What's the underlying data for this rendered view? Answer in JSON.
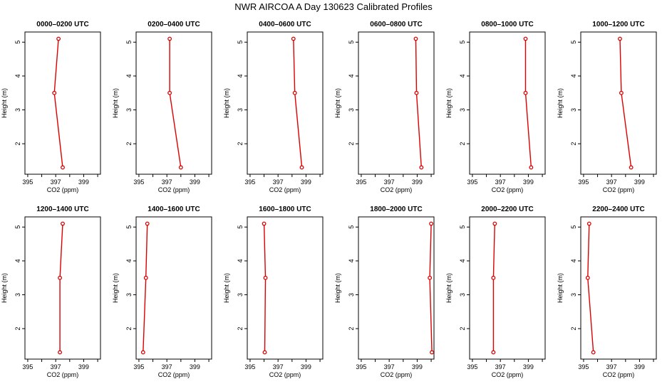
{
  "title": "NWR AIRCOA A  Day 130623  Calibrated Profiles",
  "chart_data": {
    "type": "line",
    "layout": "small-multiples 2x6",
    "xlabel": "CO2 (ppm)",
    "ylabel": "Height (m)",
    "xlim": [
      394.8,
      400.2
    ],
    "ylim": [
      1.1,
      5.3
    ],
    "xticks": [
      395,
      396,
      397,
      398,
      399,
      400
    ],
    "xtick_labels": [
      "395",
      "",
      "397",
      "",
      "399",
      ""
    ],
    "yticks": [
      2,
      3,
      4,
      5
    ],
    "ytick_labels": [
      "2",
      "3",
      "4",
      "5"
    ],
    "grid": false,
    "line_color": "#dd0000",
    "marker": "open-circle",
    "panels": [
      {
        "label": "0000–0200 UTC",
        "points": [
          {
            "x": 397.2,
            "y": 5.1
          },
          {
            "x": 396.9,
            "y": 3.5
          },
          {
            "x": 397.5,
            "y": 1.3
          }
        ]
      },
      {
        "label": "0200–0400 UTC",
        "points": [
          {
            "x": 397.2,
            "y": 5.1
          },
          {
            "x": 397.2,
            "y": 3.5
          },
          {
            "x": 398.0,
            "y": 1.3
          }
        ]
      },
      {
        "label": "0400–0600 UTC",
        "points": [
          {
            "x": 398.1,
            "y": 5.1
          },
          {
            "x": 398.2,
            "y": 3.5
          },
          {
            "x": 398.7,
            "y": 1.3
          }
        ]
      },
      {
        "label": "0600–0800 UTC",
        "points": [
          {
            "x": 398.9,
            "y": 5.1
          },
          {
            "x": 398.95,
            "y": 3.5
          },
          {
            "x": 399.3,
            "y": 1.3
          }
        ]
      },
      {
        "label": "0800–1000 UTC",
        "points": [
          {
            "x": 398.8,
            "y": 5.1
          },
          {
            "x": 398.8,
            "y": 3.5
          },
          {
            "x": 399.2,
            "y": 1.3
          }
        ]
      },
      {
        "label": "1000–1200 UTC",
        "points": [
          {
            "x": 397.6,
            "y": 5.1
          },
          {
            "x": 397.7,
            "y": 3.5
          },
          {
            "x": 398.4,
            "y": 1.3
          }
        ]
      },
      {
        "label": "1200–1400 UTC",
        "points": [
          {
            "x": 397.5,
            "y": 5.1
          },
          {
            "x": 397.3,
            "y": 3.5
          },
          {
            "x": 397.3,
            "y": 1.3
          }
        ]
      },
      {
        "label": "1400–1600 UTC",
        "points": [
          {
            "x": 395.6,
            "y": 5.1
          },
          {
            "x": 395.5,
            "y": 3.5
          },
          {
            "x": 395.3,
            "y": 1.3
          }
        ]
      },
      {
        "label": "1600–1800 UTC",
        "points": [
          {
            "x": 396.0,
            "y": 5.1
          },
          {
            "x": 396.1,
            "y": 3.5
          },
          {
            "x": 396.05,
            "y": 1.3
          }
        ]
      },
      {
        "label": "1800–2000 UTC",
        "points": [
          {
            "x": 400.0,
            "y": 5.1
          },
          {
            "x": 399.9,
            "y": 3.5
          },
          {
            "x": 400.05,
            "y": 1.3
          }
        ]
      },
      {
        "label": "2000–2200 UTC",
        "points": [
          {
            "x": 396.6,
            "y": 5.1
          },
          {
            "x": 396.5,
            "y": 3.5
          },
          {
            "x": 396.5,
            "y": 1.3
          }
        ]
      },
      {
        "label": "2200–2400 UTC",
        "points": [
          {
            "x": 395.4,
            "y": 5.1
          },
          {
            "x": 395.3,
            "y": 3.5
          },
          {
            "x": 395.7,
            "y": 1.3
          }
        ]
      }
    ]
  }
}
